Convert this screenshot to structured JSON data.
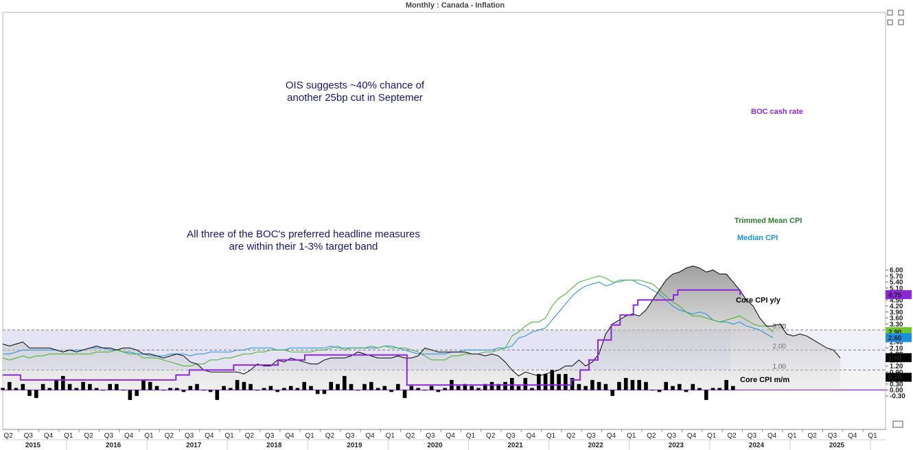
{
  "header": {
    "title": "Monthly : Canada - Inflation"
  },
  "colors": {
    "core_yy": "#000000",
    "trimmed": "#3fae25",
    "median": "#1c8ee0",
    "boc": "#8b26d9",
    "band": "#e4e4f4",
    "mm_bar": "#000000"
  },
  "chart_data": {
    "type": "line",
    "x_start": "2015-04",
    "x_unit": "month",
    "title": "Monthly : Canada - Inflation",
    "ylim": [
      -0.58,
      6.25
    ],
    "y_ticks": [
      6.0,
      5.7,
      5.4,
      5.1,
      4.8,
      4.5,
      4.2,
      3.9,
      3.6,
      3.3,
      3.0,
      2.7,
      2.4,
      2.1,
      1.8,
      1.5,
      1.2,
      0.9,
      0.6,
      0.3,
      0.0,
      -0.3
    ],
    "y_tick_labels": [
      "6.00",
      "5.70",
      "5.40",
      "5.10",
      "4.80",
      "4.50",
      "4.20",
      "3.90",
      "3.60",
      "3.30",
      "3.00",
      "2.70",
      "2.40",
      "2.10",
      "1.80",
      "1.50",
      "1.20",
      "0.90",
      "0.60",
      "0.30",
      "0.00",
      "-0.30"
    ],
    "reference_lines": [
      {
        "value": 3.0,
        "label": "3.00"
      },
      {
        "value": 2.0,
        "label": "2.00"
      },
      {
        "value": 1.0,
        "label": "1.00"
      }
    ],
    "target_band": [
      1.0,
      3.0
    ],
    "x_quarter_labels": [
      "Q2",
      "Q3",
      "Q4",
      "Q1",
      "Q2",
      "Q3",
      "Q4",
      "Q1",
      "Q2",
      "Q3",
      "Q4",
      "Q1",
      "Q2",
      "Q3",
      "Q4",
      "Q1",
      "Q2",
      "Q3",
      "Q4",
      "Q1",
      "Q2",
      "Q3",
      "Q4",
      "Q1",
      "Q2",
      "Q3",
      "Q4",
      "Q1",
      "Q2",
      "Q3",
      "Q4",
      "Q1",
      "Q2",
      "Q3",
      "Q4",
      "Q1",
      "Q2",
      "Q3",
      "Q4",
      "Q1",
      "Q2",
      "Q3",
      "Q4",
      "Q1"
    ],
    "x_year_labels": [
      "2015",
      "2016",
      "2017",
      "2018",
      "2019",
      "2020",
      "2021",
      "2022",
      "2023",
      "2024",
      "2025"
    ],
    "series": [
      {
        "name": "Core CPI y/y",
        "key": "core_yy",
        "last_value_label": "1.60",
        "values": [
          2.3,
          2.2,
          2.3,
          2.4,
          2.1,
          2.1,
          2.1,
          2.1,
          2.0,
          1.9,
          2.0,
          1.9,
          2.0,
          2.1,
          2.2,
          2.1,
          2.1,
          2.0,
          2.1,
          2.1,
          2.0,
          1.8,
          1.8,
          1.7,
          1.6,
          1.7,
          1.8,
          1.7,
          1.4,
          1.3,
          1.0,
          0.9,
          0.9,
          0.9,
          0.9,
          0.9,
          0.8,
          1.0,
          1.3,
          1.2,
          1.2,
          1.5,
          1.4,
          1.6,
          1.5,
          1.4,
          1.3,
          1.3,
          1.5,
          1.6,
          1.6,
          1.6,
          1.7,
          1.9,
          1.8,
          1.7,
          1.6,
          1.6,
          1.6,
          1.7,
          1.6,
          1.6,
          1.7,
          2.1,
          2.0,
          1.9,
          1.9,
          1.9,
          1.9,
          1.9,
          1.8,
          1.8,
          1.7,
          1.8,
          1.7,
          1.4,
          1.0,
          0.7,
          0.9,
          0.8,
          0.7,
          0.8,
          0.9,
          1.0,
          1.2,
          1.2,
          1.5,
          1.2,
          1.4,
          1.8,
          2.8,
          3.3,
          3.5,
          3.7,
          3.8,
          3.7,
          4.0,
          4.5,
          5.0,
          5.5,
          5.8,
          5.9,
          6.1,
          6.2,
          6.1,
          5.9,
          6.0,
          5.8,
          5.8,
          5.4,
          5.0,
          4.5,
          4.2,
          3.6,
          3.2,
          3.2,
          3.3,
          2.8,
          2.7,
          2.8,
          2.7,
          2.5,
          2.3,
          2.1,
          2.0,
          1.6
        ]
      },
      {
        "name": "Trimmed Mean CPI",
        "key": "trimmed",
        "last_value_label": "2.90",
        "values": [
          1.6,
          1.5,
          1.6,
          1.7,
          1.6,
          1.7,
          1.7,
          1.8,
          1.8,
          1.8,
          1.8,
          1.8,
          1.8,
          1.8,
          1.9,
          1.9,
          1.9,
          2.0,
          1.9,
          1.8,
          1.8,
          1.6,
          1.6,
          1.6,
          1.5,
          1.4,
          1.3,
          1.2,
          1.2,
          1.3,
          1.3,
          1.5,
          1.5,
          1.6,
          1.6,
          1.7,
          1.8,
          1.8,
          1.9,
          1.9,
          2.0,
          2.0,
          2.0,
          1.9,
          1.9,
          1.9,
          1.9,
          2.0,
          2.0,
          2.1,
          2.2,
          2.0,
          2.1,
          2.1,
          2.1,
          2.2,
          2.1,
          2.2,
          2.1,
          2.1,
          2.1,
          2.0,
          1.9,
          1.7,
          1.5,
          1.5,
          1.5,
          1.7,
          1.7,
          1.8,
          1.8,
          1.8,
          1.9,
          1.9,
          2.0,
          2.1,
          2.7,
          2.9,
          3.2,
          3.4,
          3.4,
          3.6,
          4.2,
          4.6,
          4.8,
          5.1,
          5.4,
          5.5,
          5.6,
          5.7,
          5.6,
          5.4,
          5.4,
          5.5,
          5.5,
          5.5,
          5.4,
          5.3,
          5.0,
          4.7,
          4.4,
          4.2,
          3.9,
          3.7,
          3.7,
          3.6,
          3.5,
          3.4,
          3.5,
          3.6,
          3.7,
          3.5,
          3.3,
          3.2,
          3.2,
          2.9
        ]
      },
      {
        "name": "Median CPI",
        "key": "median",
        "last_value_label": "2.60",
        "values": [
          1.8,
          1.8,
          1.9,
          2.0,
          2.0,
          2.0,
          2.0,
          2.0,
          2.0,
          1.9,
          2.0,
          2.0,
          2.0,
          2.1,
          2.1,
          2.1,
          2.0,
          2.0,
          1.9,
          1.9,
          1.8,
          1.8,
          1.7,
          1.7,
          1.7,
          1.8,
          1.8,
          1.8,
          1.7,
          1.8,
          1.8,
          1.9,
          1.9,
          1.9,
          1.9,
          2.0,
          2.0,
          2.1,
          2.1,
          2.1,
          2.1,
          2.0,
          2.0,
          2.1,
          2.1,
          2.1,
          2.1,
          2.1,
          2.1,
          2.2,
          2.1,
          2.1,
          2.1,
          2.1,
          2.1,
          2.1,
          2.1,
          2.2,
          2.2,
          2.1,
          2.0,
          1.9,
          1.8,
          1.8,
          1.8,
          1.8,
          1.8,
          1.9,
          1.9,
          2.0,
          2.0,
          2.0,
          2.0,
          2.0,
          2.1,
          2.1,
          2.2,
          2.6,
          2.7,
          2.9,
          3.0,
          3.1,
          3.5,
          3.9,
          4.3,
          4.7,
          5.0,
          5.2,
          5.3,
          5.4,
          5.2,
          5.3,
          5.5,
          5.5,
          5.5,
          5.3,
          5.2,
          5.0,
          4.8,
          4.5,
          4.2,
          4.0,
          3.9,
          3.8,
          3.9,
          3.8,
          3.5,
          3.4,
          3.4,
          3.3,
          3.4,
          3.2,
          3.1,
          3.0,
          2.8,
          2.6
        ]
      },
      {
        "name": "BOC cash rate",
        "key": "boc",
        "last_value_label": "4.75",
        "values": [
          0.75,
          0.75,
          0.75,
          0.75,
          0.5,
          0.5,
          0.5,
          0.5,
          0.5,
          0.5,
          0.5,
          0.5,
          0.5,
          0.5,
          0.5,
          0.5,
          0.5,
          0.5,
          0.5,
          0.5,
          0.5,
          0.5,
          0.5,
          0.5,
          0.5,
          0.5,
          0.5,
          0.5,
          0.5,
          0.5,
          0.5,
          0.5,
          0.5,
          0.5,
          0.5,
          0.5,
          0.5,
          0.5,
          0.5,
          0.75,
          0.75,
          0.75,
          1.0,
          1.0,
          1.0,
          1.0,
          1.0,
          1.0,
          1.0,
          1.0,
          1.0,
          1.0,
          1.25,
          1.25,
          1.25,
          1.25,
          1.25,
          1.25,
          1.25,
          1.25,
          1.25,
          1.25,
          1.5,
          1.5,
          1.5,
          1.5,
          1.5,
          1.5,
          1.75,
          1.75,
          1.75,
          1.75,
          1.75,
          1.75,
          1.75,
          1.75,
          1.75,
          1.75,
          1.75,
          1.75,
          1.75,
          1.75,
          1.75,
          1.75,
          1.75,
          1.75,
          1.75,
          1.75,
          1.75,
          1.75,
          1.75,
          0.25,
          0.25,
          0.25,
          0.25,
          0.25,
          0.25,
          0.25,
          0.25,
          0.25,
          0.25,
          0.25,
          0.25,
          0.25,
          0.25,
          0.25,
          0.25,
          0.25,
          0.25,
          0.25,
          0.25,
          0.25,
          0.25,
          0.25,
          0.25,
          0.25,
          0.25,
          0.25,
          0.25,
          0.25,
          0.25,
          0.25,
          0.25,
          0.25,
          0.25,
          0.25,
          0.25,
          0.25,
          0.5,
          0.5,
          1.0,
          1.0,
          1.5,
          1.5,
          2.5,
          2.5,
          2.5,
          3.25,
          3.25,
          3.75,
          3.75,
          3.75,
          4.25,
          4.5,
          4.5,
          4.5,
          4.5,
          4.5,
          4.5,
          4.5,
          4.5,
          4.75,
          5.0,
          5.0,
          5.0,
          5.0,
          5.0,
          5.0,
          5.0,
          5.0,
          5.0,
          5.0,
          5.0,
          5.0,
          5.0,
          5.0,
          4.75
        ]
      },
      {
        "name": "Core CPI m/m",
        "key": "mm",
        "type": "bar",
        "last_value_label": "0.20",
        "values": [
          0.1,
          0.4,
          0.1,
          0.3,
          -0.3,
          -0.4,
          0.3,
          0.1,
          0.5,
          0.7,
          0.3,
          0.1,
          0.4,
          0.3,
          0.1,
          0.0,
          0.3,
          0.3,
          0.0,
          -0.5,
          -0.3,
          0.5,
          0.4,
          0.2,
          0.0,
          0.1,
          0.1,
          -0.1,
          0.2,
          0.3,
          0.0,
          -0.1,
          -0.5,
          0.2,
          0.1,
          0.5,
          0.4,
          0.3,
          0.0,
          0.1,
          0.2,
          -0.1,
          0.1,
          0.2,
          0.1,
          0.4,
          0.2,
          -0.2,
          -0.2,
          0.4,
          0.3,
          0.7,
          0.3,
          0.0,
          0.3,
          0.4,
          0.1,
          0.2,
          -0.1,
          0.3,
          -0.4,
          0.2,
          0.1,
          0.0,
          0.2,
          -0.1,
          0.1,
          0.5,
          0.2,
          0.3,
          0.2,
          0.1,
          0.3,
          0.4,
          0.3,
          0.4,
          0.6,
          0.2,
          0.6,
          0.1,
          0.8,
          0.8,
          1.0,
          0.8,
          0.8,
          0.6,
          0.3,
          0.2,
          0.5,
          0.4,
          0.3,
          -0.3,
          0.4,
          0.6,
          0.5,
          0.5,
          0.4,
          0.0,
          -0.1,
          0.4,
          0.2,
          0.3,
          -0.1,
          0.3,
          0.1,
          -0.5,
          0.1,
          0.1,
          0.5,
          0.2
        ]
      }
    ],
    "annotations": [
      {
        "line1": "OIS suggests ~40% chance of",
        "line2": "another 25bp cut in Septemer"
      },
      {
        "line1": "All three of the BOC's preferred headline measures",
        "line2": "are within their 1-3% target band"
      }
    ]
  }
}
